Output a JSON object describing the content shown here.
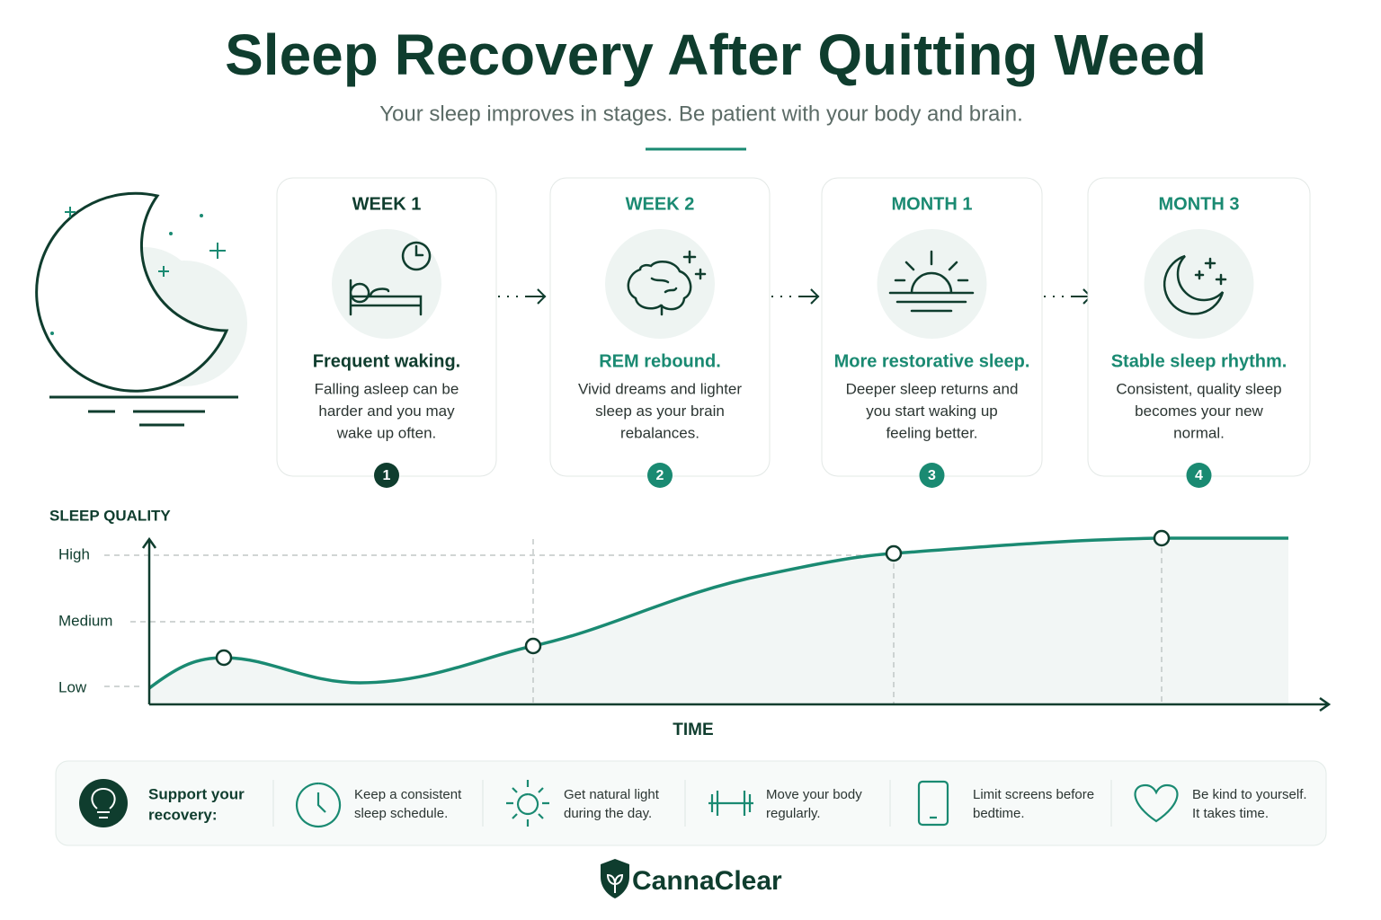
{
  "header": {
    "title": "Sleep Recovery After Quitting Weed",
    "subtitle": "Your sleep improves in stages. Be patient with your body and brain."
  },
  "stages": [
    {
      "label": "WEEK 1",
      "headline": "Frequent waking.",
      "description": [
        "Falling asleep can be",
        "harder and you may",
        "wake up often."
      ],
      "step": "1"
    },
    {
      "label": "WEEK 2",
      "headline": "REM rebound.",
      "description": [
        "Vivid dreams and lighter",
        "sleep as your brain",
        "rebalances."
      ],
      "step": "2"
    },
    {
      "label": "MONTH 1",
      "headline": "More restorative sleep.",
      "description": [
        "Deeper sleep returns and",
        "you start waking up",
        "feeling better."
      ],
      "step": "3"
    },
    {
      "label": "MONTH 3",
      "headline": "Stable sleep rhythm.",
      "description": [
        "Consistent, quality sleep",
        "becomes your new",
        "normal."
      ],
      "step": "4"
    }
  ],
  "chart": {
    "y_title": "SLEEP QUALITY",
    "y_levels": [
      "High",
      "Medium",
      "Low"
    ],
    "x_title": "TIME"
  },
  "tips": {
    "heading": [
      "Support your",
      "recovery:"
    ],
    "items": [
      [
        "Keep a consistent",
        "sleep schedule."
      ],
      [
        "Get natural light",
        "during the day."
      ],
      [
        "Move your body",
        "regularly."
      ],
      [
        "Limit screens before",
        "bedtime."
      ],
      [
        "Be kind to yourself.",
        "It takes time."
      ]
    ]
  },
  "footer": {
    "brand": "CannaClear"
  }
}
